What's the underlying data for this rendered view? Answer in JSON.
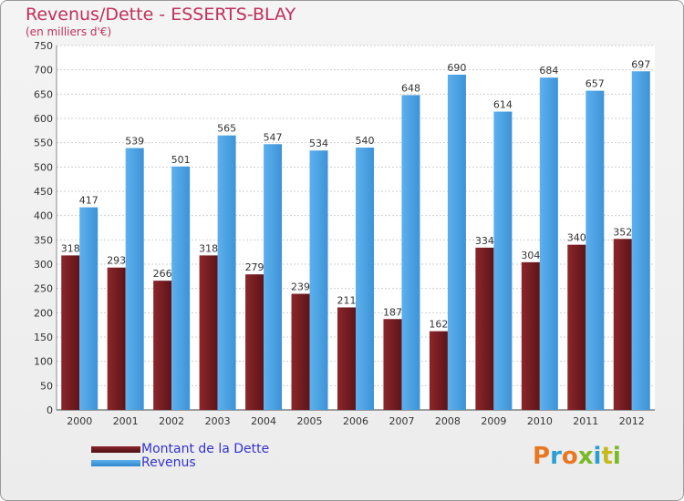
{
  "title": "Revenus/Dette - ESSERTS-BLAY",
  "subtitle": "(en milliers d'€)",
  "logo": {
    "text": "Proxiti",
    "colors": [
      "#e87722",
      "#2a9fd6",
      "#e87722",
      "#79b928",
      "#2a9fd6",
      "#c7b81c",
      "#79b928"
    ]
  },
  "chart_data": {
    "type": "bar",
    "categories": [
      "2000",
      "2001",
      "2002",
      "2003",
      "2004",
      "2005",
      "2006",
      "2007",
      "2008",
      "2009",
      "2010",
      "2011",
      "2012"
    ],
    "series": [
      {
        "name": "Montant de la Dette",
        "color": "#7a1f23",
        "values": [
          318,
          293,
          266,
          318,
          279,
          239,
          211,
          187,
          162,
          334,
          304,
          340,
          352
        ]
      },
      {
        "name": "Revenus",
        "color": "#4da3e3",
        "values": [
          417,
          539,
          501,
          565,
          547,
          534,
          540,
          648,
          690,
          614,
          684,
          657,
          697
        ]
      }
    ],
    "ylim": [
      0,
      750
    ],
    "yticks": [
      0,
      50,
      100,
      150,
      200,
      250,
      300,
      350,
      400,
      450,
      500,
      550,
      600,
      650,
      700,
      750
    ],
    "grid": true,
    "legend": "bottom-left"
  }
}
